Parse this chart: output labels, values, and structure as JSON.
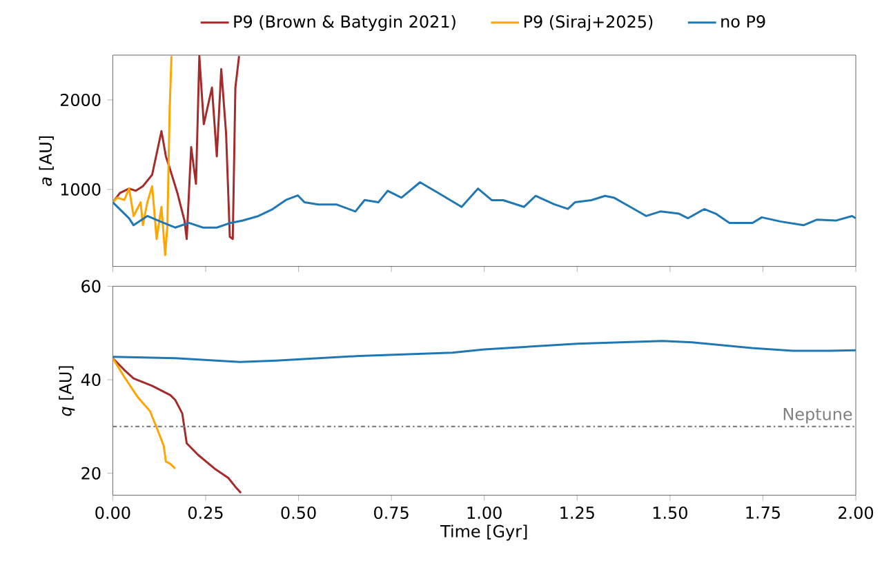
{
  "chart_data": [
    {
      "type": "line",
      "ylabel": "*a* [AU]",
      "legend": "top",
      "grid": false,
      "marker": "none",
      "tick_labels": "y",
      "xlim": [
        0,
        2
      ],
      "ylim": [
        140,
        2500
      ],
      "xticks": [
        {
          "value": 0,
          "label": null
        },
        {
          "value": 0.25,
          "label": null
        },
        {
          "value": 0.5,
          "label": null
        },
        {
          "value": 0.75,
          "label": null
        },
        {
          "value": 1,
          "label": null
        },
        {
          "value": 1.25,
          "label": null
        },
        {
          "value": 1.5,
          "label": null
        },
        {
          "value": 1.75,
          "label": null
        },
        {
          "value": 2,
          "label": null
        }
      ],
      "yticks": [
        1000,
        2000
      ],
      "series": [
        {
          "name": "P9 (Brown & Batygin 2021)",
          "color": "#a52a2a",
          "x": [
            0,
            0.019,
            0.044,
            0.062,
            0.081,
            0.106,
            0.131,
            0.143,
            0.155,
            0.174,
            0.193,
            0.199,
            0.211,
            0.224,
            0.233,
            0.245,
            0.267,
            0.28,
            0.292,
            0.305,
            0.315,
            0.323,
            0.33,
            0.34
          ],
          "values": [
            856,
            959,
            1010,
            985,
            1036,
            1164,
            1651,
            1369,
            1215,
            959,
            651,
            446,
            1472,
            1062,
            2490,
            1728,
            2138,
            1369,
            2344,
            1626,
            472,
            446,
            2138,
            2490
          ]
        },
        {
          "name": "P9 (Siraj+2025)",
          "color": "#ffa500",
          "x": [
            0,
            0.012,
            0.031,
            0.044,
            0.056,
            0.075,
            0.081,
            0.093,
            0.106,
            0.118,
            0.131,
            0.141,
            0.147,
            0.153,
            0.158
          ],
          "values": [
            856,
            908,
            882,
            1010,
            703,
            856,
            600,
            856,
            1036,
            446,
            805,
            267,
            600,
            1882,
            2490
          ]
        },
        {
          "name": "no P9",
          "color": "#1f77b4",
          "x": [
            0,
            0.044,
            0.056,
            0.093,
            0.137,
            0.168,
            0.205,
            0.243,
            0.28,
            0.317,
            0.348,
            0.392,
            0.43,
            0.466,
            0.498,
            0.516,
            0.553,
            0.603,
            0.653,
            0.678,
            0.715,
            0.74,
            0.777,
            0.827,
            0.877,
            0.939,
            0.983,
            1.02,
            1.051,
            1.107,
            1.138,
            1.188,
            1.225,
            1.244,
            1.288,
            1.325,
            1.35,
            1.393,
            1.436,
            1.474,
            1.524,
            1.548,
            1.592,
            1.623,
            1.66,
            1.722,
            1.747,
            1.797,
            1.859,
            1.896,
            1.946,
            1.99,
            2.0
          ],
          "values": [
            856,
            677,
            600,
            703,
            626,
            574,
            626,
            574,
            574,
            626,
            651,
            703,
            779,
            882,
            933,
            856,
            831,
            831,
            754,
            882,
            856,
            985,
            908,
            1080,
            959,
            805,
            1009,
            880,
            880,
            805,
            928,
            834,
            783,
            856,
            880,
            928,
            906,
            805,
            703,
            754,
            729,
            678,
            780,
            729,
            626,
            626,
            688,
            642,
            600,
            663,
            652,
            703,
            678
          ]
        }
      ]
    },
    {
      "type": "line",
      "ylabel": "*q* [AU]",
      "xlabel": "Time [Gyr]",
      "grid": false,
      "marker": "none",
      "xlim": [
        0,
        2
      ],
      "ylim": [
        15.3,
        60
      ],
      "xticks": [
        {
          "value": 0,
          "label": "0.00"
        },
        {
          "value": 0.25,
          "label": "0.25"
        },
        {
          "value": 0.5,
          "label": "0.50"
        },
        {
          "value": 0.75,
          "label": "0.75"
        },
        {
          "value": 1,
          "label": "1.00"
        },
        {
          "value": 1.25,
          "label": "1.25"
        },
        {
          "value": 1.5,
          "label": "1.50"
        },
        {
          "value": 1.75,
          "label": "1.75"
        },
        {
          "value": 2,
          "label": "2.00"
        }
      ],
      "yticks": [
        20,
        40,
        60
      ],
      "ref_lines": [
        {
          "axis": "y",
          "value": 30,
          "label": "Neptune",
          "color": "#808080",
          "line_style": "dashdot"
        }
      ],
      "series": [
        {
          "color": "#a52a2a",
          "x": [
            0,
            0.031,
            0.056,
            0.106,
            0.155,
            0.168,
            0.187,
            0.199,
            0.23,
            0.274,
            0.311,
            0.33,
            0.345
          ],
          "values": [
            44.6,
            42.1,
            40.3,
            38.7,
            36.7,
            35.7,
            32.8,
            26.4,
            23.9,
            21.0,
            19.0,
            17.1,
            15.8
          ]
        },
        {
          "color": "#ffa500",
          "x": [
            0,
            0.031,
            0.068,
            0.1,
            0.118,
            0.137,
            0.143,
            0.155,
            0.168
          ],
          "values": [
            44.6,
            40.6,
            36.2,
            33.3,
            29.8,
            25.9,
            22.5,
            22.0,
            21.0
          ]
        },
        {
          "color": "#1f77b4",
          "x": [
            0,
            0.168,
            0.342,
            0.44,
            0.665,
            0.914,
            1.0,
            1.25,
            1.48,
            1.56,
            1.72,
            1.83,
            1.93,
            2.0
          ],
          "values": [
            44.9,
            44.6,
            43.8,
            44.1,
            45.1,
            45.8,
            46.5,
            47.7,
            48.3,
            48.0,
            46.8,
            46.2,
            46.2,
            46.3
          ]
        }
      ]
    }
  ]
}
